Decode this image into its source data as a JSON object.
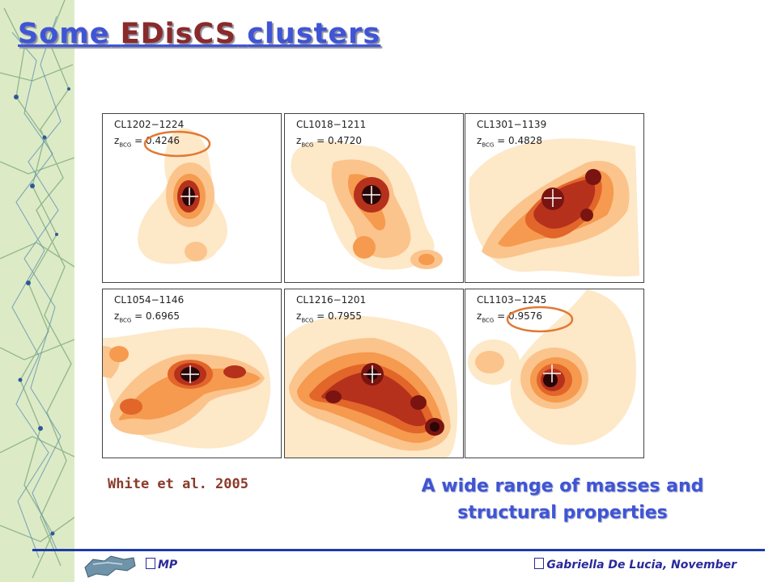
{
  "slide": {
    "title_prefix": "Some",
    "title_highlight": "EDisCS",
    "title_suffix": "clusters",
    "citation": "White et al. 2005",
    "caption_line1": "A wide range of masses and",
    "caption_line2": "structural properties",
    "footer_left": "MP",
    "footer_right": "Gabriella De Lucia, November"
  },
  "colors": {
    "title": "#3f55d6",
    "title_highlight": "#8a2a2a",
    "contour_levels": [
      "#fde8c8",
      "#fbc48c",
      "#f59a4e",
      "#e2652a",
      "#b5311c",
      "#7a1410",
      "#2a0606"
    ],
    "highlight_ring": "#e07a35",
    "footer_line": "#1e3aa8"
  },
  "panels": [
    {
      "name": "CL1202−1224",
      "z_value": "0.4246",
      "highlighted": true
    },
    {
      "name": "CL1018−1211",
      "z_value": "0.4720",
      "highlighted": false
    },
    {
      "name": "CL1301−1139",
      "z_value": "0.4828",
      "highlighted": false
    },
    {
      "name": "CL1054−1146",
      "z_value": "0.6965",
      "highlighted": false
    },
    {
      "name": "CL1216−1201",
      "z_value": "0.7955",
      "highlighted": false
    },
    {
      "name": "CL1103−1245",
      "z_value": "0.9576",
      "highlighted": true
    }
  ],
  "z_label": "z",
  "z_subscript": "BCG",
  "z_equals": "="
}
